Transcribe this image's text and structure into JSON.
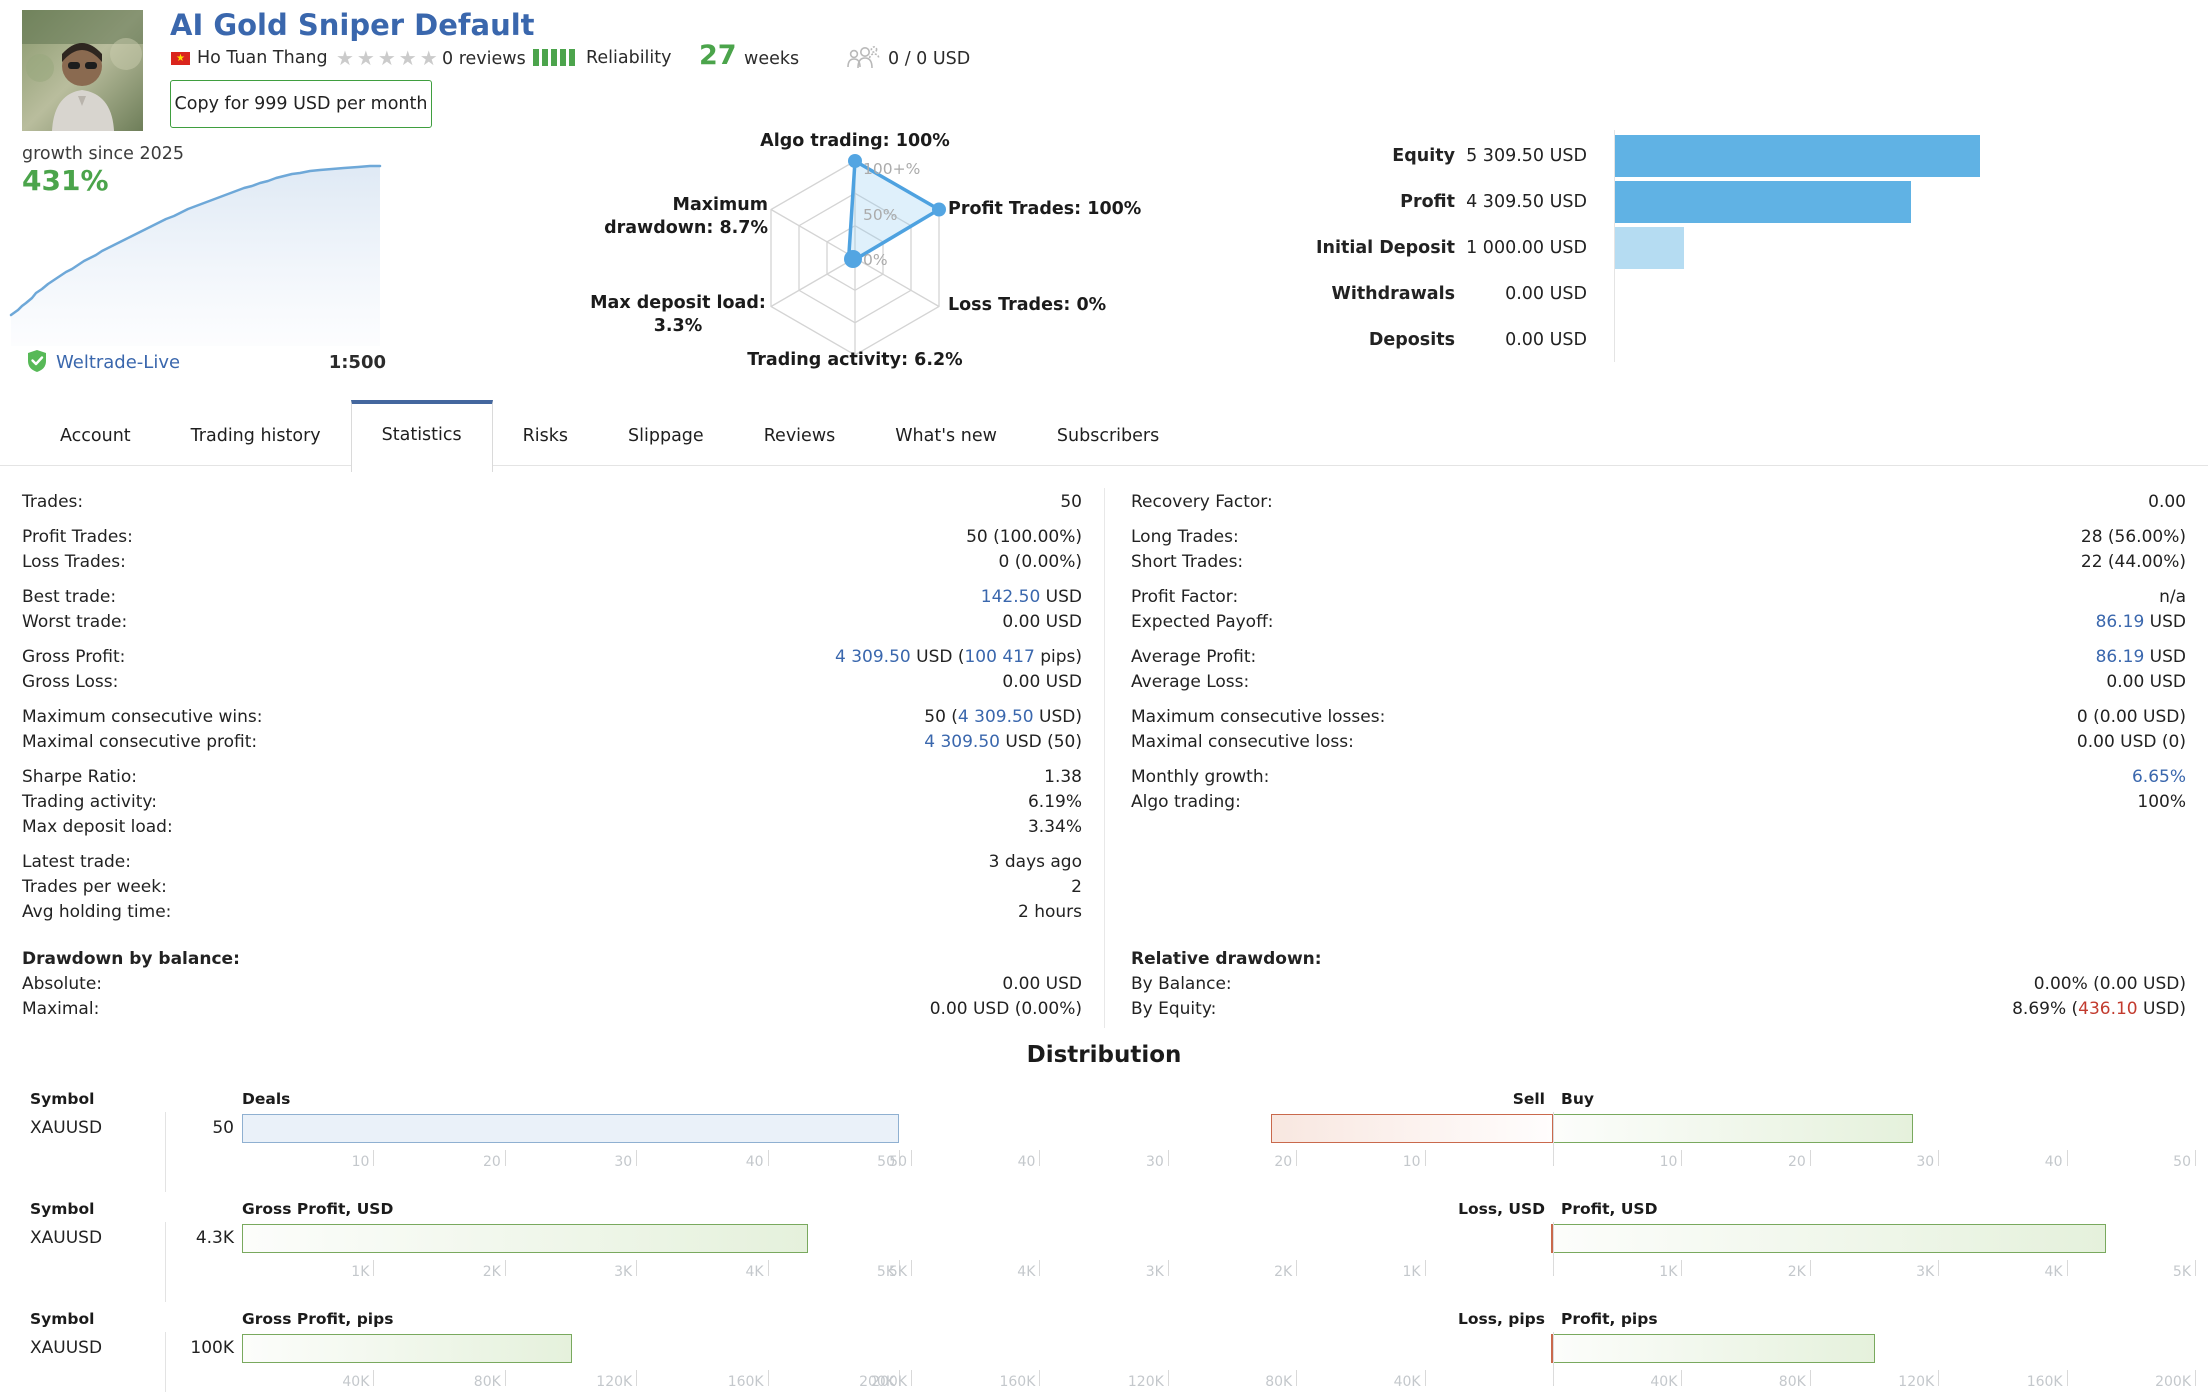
{
  "header": {
    "title": "AI Gold Sniper Default",
    "author": "Ho Tuan Thang",
    "stars": "★★★★★",
    "reviews": "0 reviews",
    "reliability_label": "Reliability",
    "weeks_value": "27",
    "weeks_label": "weeks",
    "funds": "0 / 0 USD",
    "copy_button": "Copy for 999 USD per month"
  },
  "growth": {
    "label": "growth since 2025",
    "value": "431%",
    "broker": "Weltrade-Live",
    "leverage": "1:500"
  },
  "radar": {
    "top": "Algo trading: 100%",
    "right_top": "Profit Trades: 100%",
    "right_bottom": "Loss Trades: 0%",
    "bottom": "Trading activity: 6.2%",
    "left_bottom_1": "Max deposit load:",
    "left_bottom_2": "3.3%",
    "left_top_1": "Maximum",
    "left_top_2": "drawdown: 8.7%",
    "ring_outer": "100+%",
    "ring_middle": "50%",
    "ring_center": "0%"
  },
  "account_bars": [
    {
      "label": "Equity",
      "value": "5 309.50 USD",
      "bar_style": "width:365px"
    },
    {
      "label": "Profit",
      "value": "4 309.50 USD",
      "bar_style": "width:296px"
    },
    {
      "label": "Initial Deposit",
      "value": "1 000.00 USD",
      "bar_style": "width:69px"
    },
    {
      "label": "Withdrawals",
      "value": "0.00 USD",
      "bar_style": "width:0px"
    },
    {
      "label": "Deposits",
      "value": "0.00 USD",
      "bar_style": "width:0px"
    }
  ],
  "tabs": [
    {
      "label": "Account"
    },
    {
      "label": "Trading history"
    },
    {
      "label": "Statistics"
    },
    {
      "label": "Risks"
    },
    {
      "label": "Slippage"
    },
    {
      "label": "Reviews"
    },
    {
      "label": "What's new"
    },
    {
      "label": "Subscribers"
    }
  ],
  "stats_left": [
    {
      "label": "Trades:",
      "segs": [
        {
          "t": "50"
        }
      ]
    },
    {
      "label": "Profit Trades:",
      "segs": [
        {
          "t": "50 (100.00%)"
        }
      ]
    },
    {
      "label": "Loss Trades:",
      "segs": [
        {
          "t": "0 (0.00%)"
        }
      ]
    },
    {
      "label": "Best trade:",
      "segs": [
        {
          "t": "142.50",
          "c": "b"
        },
        {
          "t": " USD"
        }
      ]
    },
    {
      "label": "Worst trade:",
      "segs": [
        {
          "t": "0.00 USD"
        }
      ]
    },
    {
      "label": "Gross Profit:",
      "segs": [
        {
          "t": "4 309.50",
          "c": "b"
        },
        {
          "t": " USD ("
        },
        {
          "t": "100 417",
          "c": "b"
        },
        {
          "t": " pips)"
        }
      ]
    },
    {
      "label": "Gross Loss:",
      "segs": [
        {
          "t": "0.00 USD"
        }
      ]
    },
    {
      "label": "Maximum consecutive wins:",
      "segs": [
        {
          "t": "50 ("
        },
        {
          "t": "4 309.50",
          "c": "b"
        },
        {
          "t": " USD)"
        }
      ]
    },
    {
      "label": "Maximal consecutive profit:",
      "segs": [
        {
          "t": "4 309.50",
          "c": "b"
        },
        {
          "t": " USD (50)"
        }
      ]
    },
    {
      "label": "Sharpe Ratio:",
      "segs": [
        {
          "t": "1.38"
        }
      ]
    },
    {
      "label": "Trading activity:",
      "segs": [
        {
          "t": "6.19%"
        }
      ]
    },
    {
      "label": "Max deposit load:",
      "segs": [
        {
          "t": "3.34%"
        }
      ]
    },
    {
      "label": "Latest trade:",
      "segs": [
        {
          "t": "3 days ago"
        }
      ]
    },
    {
      "label": "Trades per week:",
      "segs": [
        {
          "t": "2"
        }
      ]
    },
    {
      "label": "Avg holding time:",
      "segs": [
        {
          "t": "2 hours"
        }
      ]
    }
  ],
  "stats_right": [
    {
      "label": "Recovery Factor:",
      "segs": [
        {
          "t": "0.00"
        }
      ]
    },
    {
      "label": "Long Trades:",
      "segs": [
        {
          "t": "28 (56.00%)"
        }
      ]
    },
    {
      "label": "Short Trades:",
      "segs": [
        {
          "t": "22 (44.00%)"
        }
      ]
    },
    {
      "label": "Profit Factor:",
      "segs": [
        {
          "t": "n/a"
        }
      ]
    },
    {
      "label": "Expected Payoff:",
      "segs": [
        {
          "t": "86.19",
          "c": "b"
        },
        {
          "t": " USD"
        }
      ]
    },
    {
      "label": "Average Profit:",
      "segs": [
        {
          "t": "86.19",
          "c": "b"
        },
        {
          "t": " USD"
        }
      ]
    },
    {
      "label": "Average Loss:",
      "segs": [
        {
          "t": "0.00 USD"
        }
      ]
    },
    {
      "label": "Maximum consecutive losses:",
      "segs": [
        {
          "t": "0 (0.00 USD)"
        }
      ]
    },
    {
      "label": "Maximal consecutive loss:",
      "segs": [
        {
          "t": "0.00 USD (0)"
        }
      ]
    },
    {
      "label": "Monthly growth:",
      "segs": [
        {
          "t": "6.65%",
          "c": "b"
        }
      ]
    },
    {
      "label": "Algo trading:",
      "segs": [
        {
          "t": "100%"
        }
      ]
    }
  ],
  "drawdown_left": {
    "header": "Drawdown by balance:",
    "rows": [
      {
        "label": "Absolute:",
        "segs": [
          {
            "t": "0.00 USD"
          }
        ]
      },
      {
        "label": "Maximal:",
        "segs": [
          {
            "t": "0.00 USD (0.00%)"
          }
        ]
      }
    ]
  },
  "drawdown_right": {
    "header": "Relative drawdown:",
    "rows": [
      {
        "label": "By Balance:",
        "segs": [
          {
            "t": "0.00% (0.00 USD)"
          }
        ]
      },
      {
        "label": "By Equity:",
        "segs": [
          {
            "t": "8.69% ("
          },
          {
            "t": "436.10",
            "c": "r"
          },
          {
            "t": " USD)"
          }
        ]
      }
    ]
  },
  "distribution": {
    "title": "Distribution",
    "rows": [
      {
        "symbol_header": "Symbol",
        "chart_header": "Deals",
        "loss_header": "Sell",
        "profit_header": "Buy",
        "symbol": "XAUUSD",
        "value": "50",
        "bar_style": "width:100%",
        "sell_style": "width:22%",
        "buy_style": "width:28%",
        "left_ticks": [
          {
            "p": 20,
            "t": "10"
          },
          {
            "p": 40,
            "t": "20"
          },
          {
            "p": 60,
            "t": "30"
          },
          {
            "p": 80,
            "t": "40"
          },
          {
            "p": 100,
            "t": "50"
          }
        ],
        "right_ticks": [
          {
            "p": 0,
            "t": "50"
          },
          {
            "p": 10,
            "t": "40"
          },
          {
            "p": 20,
            "t": "30"
          },
          {
            "p": 30,
            "t": "20"
          },
          {
            "p": 40,
            "t": "10"
          },
          {
            "p": 50
          },
          {
            "p": 60,
            "t": "10"
          },
          {
            "p": 70,
            "t": "20"
          },
          {
            "p": 80,
            "t": "30"
          },
          {
            "p": 90,
            "t": "40"
          },
          {
            "p": 100,
            "t": "50"
          }
        ]
      },
      {
        "symbol_header": "Symbol",
        "chart_header": "Gross Profit, USD",
        "loss_header": "Loss, USD",
        "profit_header": "Profit, USD",
        "symbol": "XAUUSD",
        "value": "4.3K",
        "bar_style": "width:86.2%",
        "sell_style": "width:0px",
        "buy_style": "width:43.1%",
        "left_ticks": [
          {
            "p": 20,
            "t": "1K"
          },
          {
            "p": 40,
            "t": "2K"
          },
          {
            "p": 60,
            "t": "3K"
          },
          {
            "p": 80,
            "t": "4K"
          },
          {
            "p": 100,
            "t": "5K"
          }
        ],
        "right_ticks": [
          {
            "p": 0,
            "t": "5K"
          },
          {
            "p": 10,
            "t": "4K"
          },
          {
            "p": 20,
            "t": "3K"
          },
          {
            "p": 30,
            "t": "2K"
          },
          {
            "p": 40,
            "t": "1K"
          },
          {
            "p": 50
          },
          {
            "p": 60,
            "t": "1K"
          },
          {
            "p": 70,
            "t": "2K"
          },
          {
            "p": 80,
            "t": "3K"
          },
          {
            "p": 90,
            "t": "4K"
          },
          {
            "p": 100,
            "t": "5K"
          }
        ]
      },
      {
        "symbol_header": "Symbol",
        "chart_header": "Gross Profit, pips",
        "loss_header": "Loss, pips",
        "profit_header": "Profit, pips",
        "symbol": "XAUUSD",
        "value": "100K",
        "bar_style": "width:50.2%",
        "sell_style": "width:0px",
        "buy_style": "width:25.1%",
        "left_ticks": [
          {
            "p": 20,
            "t": "40K"
          },
          {
            "p": 40,
            "t": "80K"
          },
          {
            "p": 60,
            "t": "120K"
          },
          {
            "p": 80,
            "t": "160K"
          },
          {
            "p": 100,
            "t": "200K"
          }
        ],
        "right_ticks": [
          {
            "p": 0,
            "t": "200K"
          },
          {
            "p": 10,
            "t": "160K"
          },
          {
            "p": 20,
            "t": "120K"
          },
          {
            "p": 30,
            "t": "80K"
          },
          {
            "p": 40,
            "t": "40K"
          },
          {
            "p": 50
          },
          {
            "p": 60,
            "t": "40K"
          },
          {
            "p": 70,
            "t": "80K"
          },
          {
            "p": 80,
            "t": "120K"
          },
          {
            "p": 90,
            "t": "160K"
          },
          {
            "p": 100,
            "t": "200K"
          }
        ]
      }
    ]
  }
}
